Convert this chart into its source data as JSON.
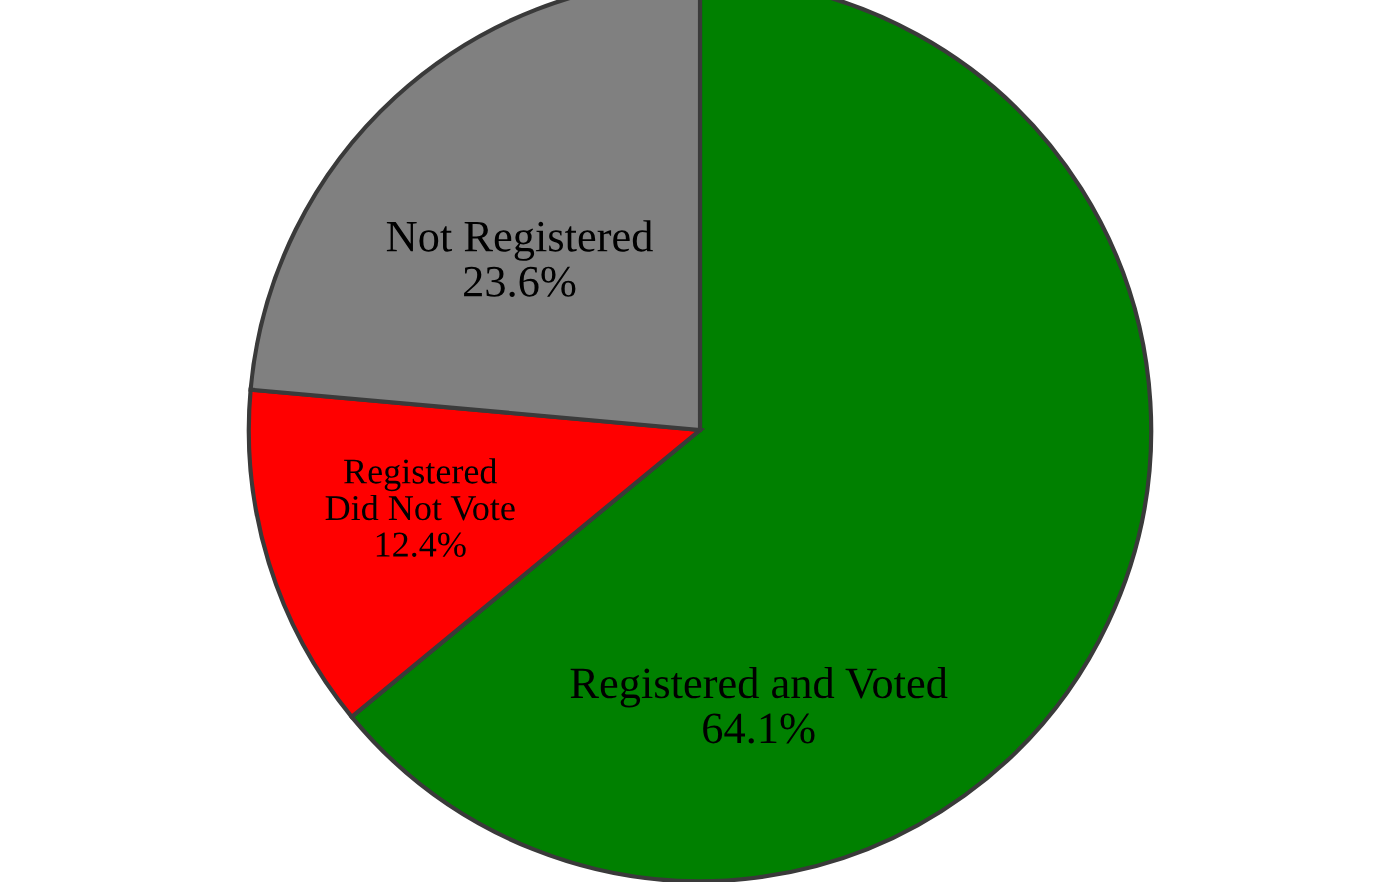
{
  "chart_data": {
    "type": "pie",
    "categories": [
      "Registered and Voted",
      "Registered\nDid Not Vote",
      "Not Registered"
    ],
    "values": [
      64.1,
      12.4,
      23.6
    ],
    "colors": [
      "#008000",
      "#ff0000",
      "#808080"
    ],
    "value_labels": [
      "64.1%",
      "12.4%",
      "23.6%"
    ]
  }
}
